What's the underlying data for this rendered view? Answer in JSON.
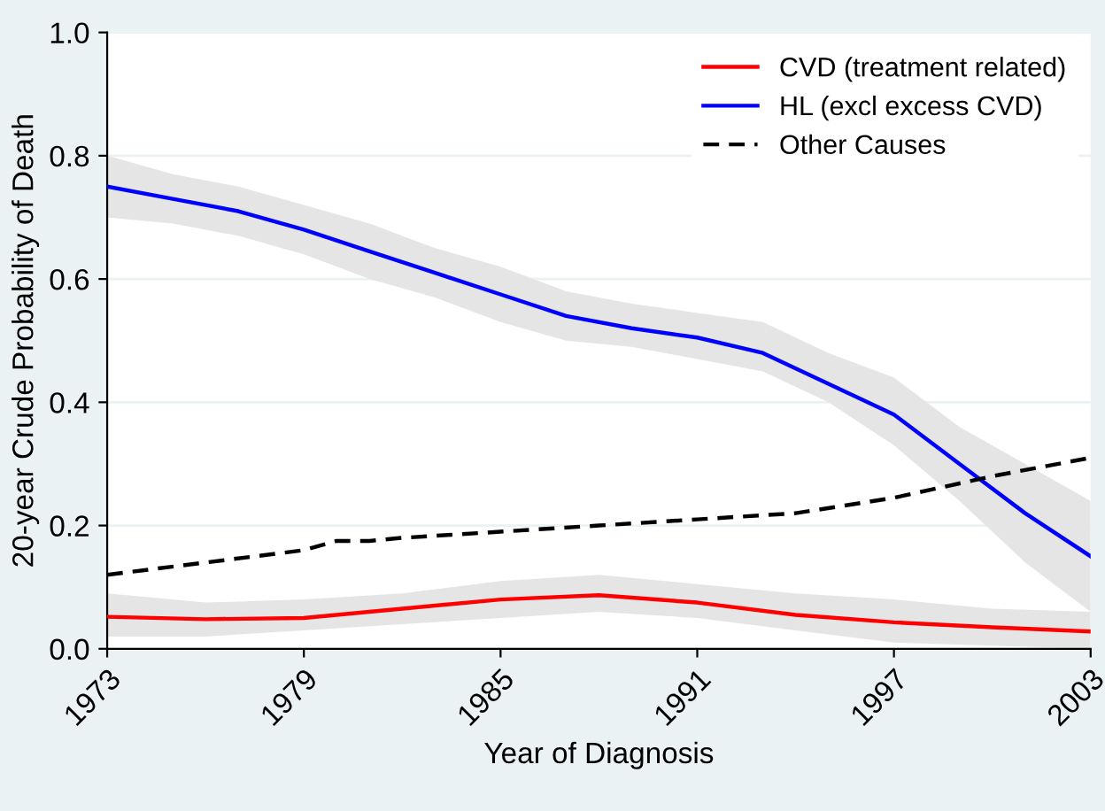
{
  "chart_data": {
    "type": "line",
    "xlabel": "Year of Diagnosis",
    "ylabel": "20-year Crude Probability of Death",
    "xlim": [
      1973,
      2003
    ],
    "xticks": [
      1973,
      1979,
      1985,
      1991,
      1997,
      2003
    ],
    "ylim": [
      0,
      1
    ],
    "yticks": [
      {
        "value": 0,
        "label": "0.0"
      },
      {
        "value": 0.2,
        "label": "0.2"
      },
      {
        "value": 0.4,
        "label": "0.4"
      },
      {
        "value": 0.6,
        "label": "0.6"
      },
      {
        "value": 0.8,
        "label": "0.8"
      },
      {
        "value": 1,
        "label": "1.0"
      }
    ],
    "grid": "y",
    "legend": "top right",
    "series": [
      {
        "name": "CVD (treatment related)",
        "color": "#ff0000",
        "line_style": "solid",
        "x": [
          1973,
          1976,
          1979,
          1982,
          1985,
          1988,
          1991,
          1994,
          1997,
          2000,
          2003
        ],
        "values": [
          0.052,
          0.048,
          0.05,
          0.065,
          0.08,
          0.087,
          0.075,
          0.055,
          0.043,
          0.035,
          0.028
        ],
        "lower": [
          0.02,
          0.02,
          0.03,
          0.04,
          0.05,
          0.06,
          0.05,
          0.03,
          0.01,
          0.005,
          0.0
        ],
        "upper": [
          0.09,
          0.075,
          0.08,
          0.09,
          0.11,
          0.12,
          0.105,
          0.09,
          0.08,
          0.065,
          0.06
        ]
      },
      {
        "name": "HL (excl excess CVD)",
        "color": "#0000ff",
        "line_style": "solid",
        "x": [
          1973,
          1975,
          1977,
          1979,
          1981,
          1983,
          1985,
          1987,
          1989,
          1991,
          1993,
          1995,
          1997,
          1999,
          2001,
          2003
        ],
        "values": [
          0.75,
          0.73,
          0.71,
          0.68,
          0.645,
          0.61,
          0.575,
          0.54,
          0.52,
          0.505,
          0.48,
          0.43,
          0.38,
          0.3,
          0.22,
          0.15
        ],
        "lower": [
          0.7,
          0.69,
          0.67,
          0.64,
          0.6,
          0.57,
          0.53,
          0.5,
          0.49,
          0.47,
          0.45,
          0.4,
          0.33,
          0.24,
          0.14,
          0.06
        ],
        "upper": [
          0.8,
          0.77,
          0.75,
          0.72,
          0.69,
          0.65,
          0.62,
          0.58,
          0.56,
          0.545,
          0.53,
          0.48,
          0.44,
          0.36,
          0.3,
          0.24
        ]
      },
      {
        "name": "Other Causes",
        "color": "#000000",
        "line_style": "dashed",
        "x": [
          1973,
          1976,
          1979,
          1980,
          1981,
          1982,
          1985,
          1988,
          1991,
          1994,
          1997,
          2000,
          2003
        ],
        "values": [
          0.12,
          0.14,
          0.16,
          0.175,
          0.175,
          0.18,
          0.19,
          0.2,
          0.21,
          0.22,
          0.245,
          0.28,
          0.31
        ]
      }
    ]
  }
}
